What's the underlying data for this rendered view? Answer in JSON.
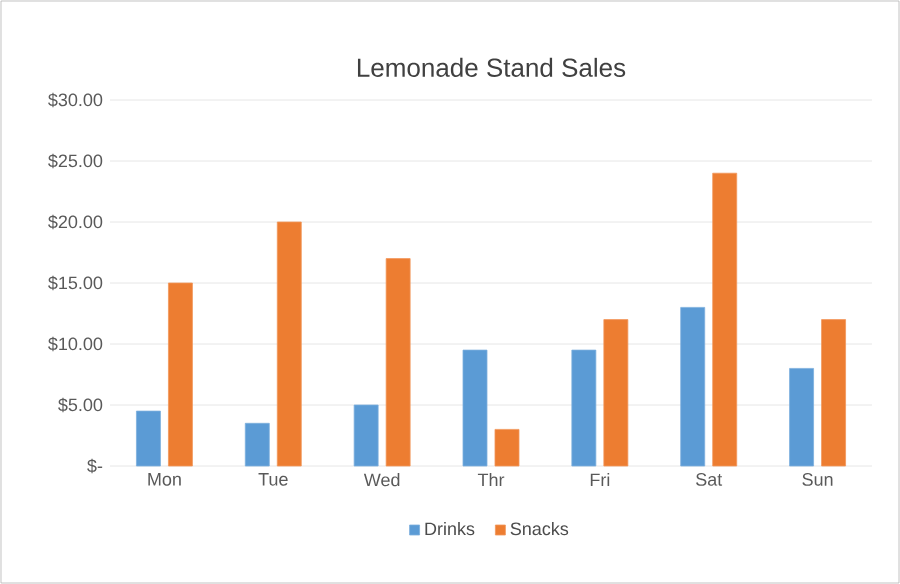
{
  "chart_data": {
    "type": "bar",
    "title": "Lemonade Stand Sales",
    "categories": [
      "Mon",
      "Tue",
      "Wed",
      "Thr",
      "Fri",
      "Sat",
      "Sun"
    ],
    "series": [
      {
        "name": "Drinks",
        "color": "#5b9bd5",
        "values": [
          4.5,
          3.5,
          5,
          9.5,
          9.5,
          13,
          8
        ]
      },
      {
        "name": "Snacks",
        "color": "#ed7d31",
        "values": [
          15,
          20,
          17,
          3,
          12,
          24,
          12
        ]
      }
    ],
    "ylim": [
      0,
      30
    ],
    "yticks": [
      {
        "value": 0,
        "label": "$-"
      },
      {
        "value": 5,
        "label": "$5.00"
      },
      {
        "value": 10,
        "label": "$10.00"
      },
      {
        "value": 15,
        "label": "$15.00"
      },
      {
        "value": 20,
        "label": "$20.00"
      },
      {
        "value": 25,
        "label": "$25.00"
      },
      {
        "value": 30,
        "label": "$30.00"
      }
    ],
    "grid": "y",
    "legend": "bottom"
  }
}
